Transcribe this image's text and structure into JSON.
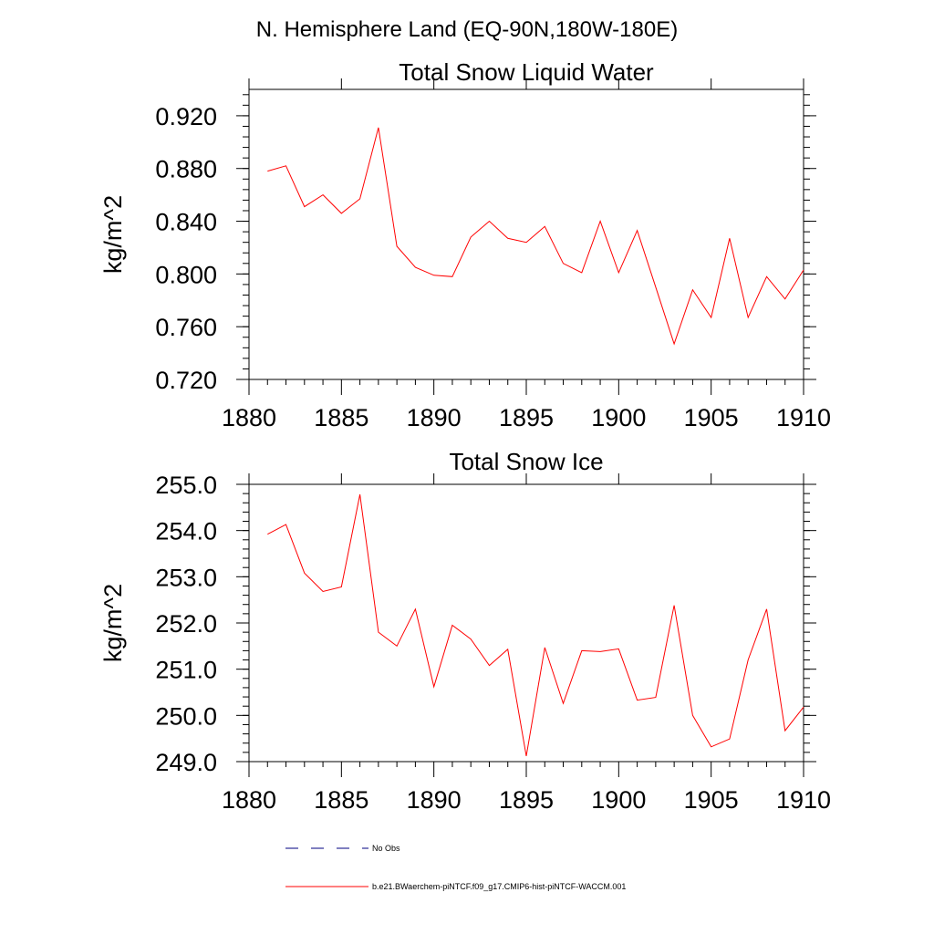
{
  "page_title": "N. Hemisphere Land (EQ-90N,180W-180E)",
  "colors": {
    "series": "#ff0000",
    "no_obs": "#000080",
    "axes": "#000000"
  },
  "legend": {
    "items": [
      {
        "label": "No Obs",
        "style": "dashed",
        "color": "#000080"
      },
      {
        "label": "b.e21.BWaerchem-piNTCF.f09_g17.CMIP6-hist-piNTCF-WACCM.001",
        "style": "solid",
        "color": "#ff0000"
      }
    ]
  },
  "chart_data": [
    {
      "type": "line",
      "title": "Total Snow Liquid Water",
      "ylabel": "kg/m^2",
      "xlabel": "",
      "xlim": [
        1880,
        1910
      ],
      "ylim": [
        0.72,
        0.94
      ],
      "xticks": [
        1880,
        1885,
        1890,
        1895,
        1900,
        1905,
        1910
      ],
      "xtick_labels": [
        "1880",
        "1885",
        "1890",
        "1895",
        "1900",
        "1905",
        "1910"
      ],
      "yticks": [
        0.72,
        0.76,
        0.8,
        0.84,
        0.88,
        0.92
      ],
      "ytick_labels": [
        "0.720",
        "0.760",
        "0.800",
        "0.840",
        "0.880",
        "0.920"
      ],
      "grid": false,
      "series": [
        {
          "name": "b.e21.BWaerchem-piNTCF.f09_g17.CMIP6-hist-piNTCF-WACCM.001",
          "x": [
            1881,
            1882,
            1883,
            1884,
            1885,
            1886,
            1887,
            1888,
            1889,
            1890,
            1891,
            1892,
            1893,
            1894,
            1895,
            1896,
            1897,
            1898,
            1899,
            1900,
            1901,
            1902,
            1903,
            1904,
            1905,
            1906,
            1907,
            1908,
            1909,
            1910
          ],
          "y": [
            0.878,
            0.882,
            0.851,
            0.86,
            0.846,
            0.857,
            0.911,
            0.821,
            0.805,
            0.799,
            0.798,
            0.828,
            0.84,
            0.827,
            0.824,
            0.836,
            0.808,
            0.801,
            0.84,
            0.801,
            0.833,
            0.79,
            0.747,
            0.788,
            0.767,
            0.827,
            0.767,
            0.798,
            0.781,
            0.803
          ]
        }
      ]
    },
    {
      "type": "line",
      "title": "Total Snow Ice",
      "ylabel": "kg/m^2",
      "xlabel": "",
      "xlim": [
        1880,
        1910
      ],
      "ylim": [
        249.0,
        255.0
      ],
      "xticks": [
        1880,
        1885,
        1890,
        1895,
        1900,
        1905,
        1910
      ],
      "xtick_labels": [
        "1880",
        "1885",
        "1890",
        "1895",
        "1900",
        "1905",
        "1910"
      ],
      "yticks": [
        249,
        250,
        251,
        252,
        253,
        254,
        255
      ],
      "ytick_labels": [
        "249.0",
        "250.0",
        "251.0",
        "252.0",
        "253.0",
        "254.0",
        "255.0"
      ],
      "grid": false,
      "series": [
        {
          "name": "b.e21.BWaerchem-piNTCF.f09_g17.CMIP6-hist-piNTCF-WACCM.001",
          "x": [
            1881,
            1882,
            1883,
            1884,
            1885,
            1886,
            1887,
            1888,
            1889,
            1890,
            1891,
            1892,
            1893,
            1894,
            1895,
            1896,
            1897,
            1898,
            1899,
            1900,
            1901,
            1902,
            1903,
            1904,
            1905,
            1906,
            1907,
            1908,
            1909,
            1910
          ],
          "y": [
            253.92,
            254.13,
            253.08,
            252.68,
            252.78,
            254.78,
            251.8,
            251.5,
            252.3,
            250.62,
            251.95,
            251.65,
            251.08,
            251.43,
            249.12,
            251.47,
            250.26,
            251.4,
            251.38,
            251.44,
            250.33,
            250.39,
            252.38,
            250.0,
            249.32,
            249.49,
            251.2,
            252.3,
            249.67,
            250.18
          ]
        }
      ]
    }
  ]
}
